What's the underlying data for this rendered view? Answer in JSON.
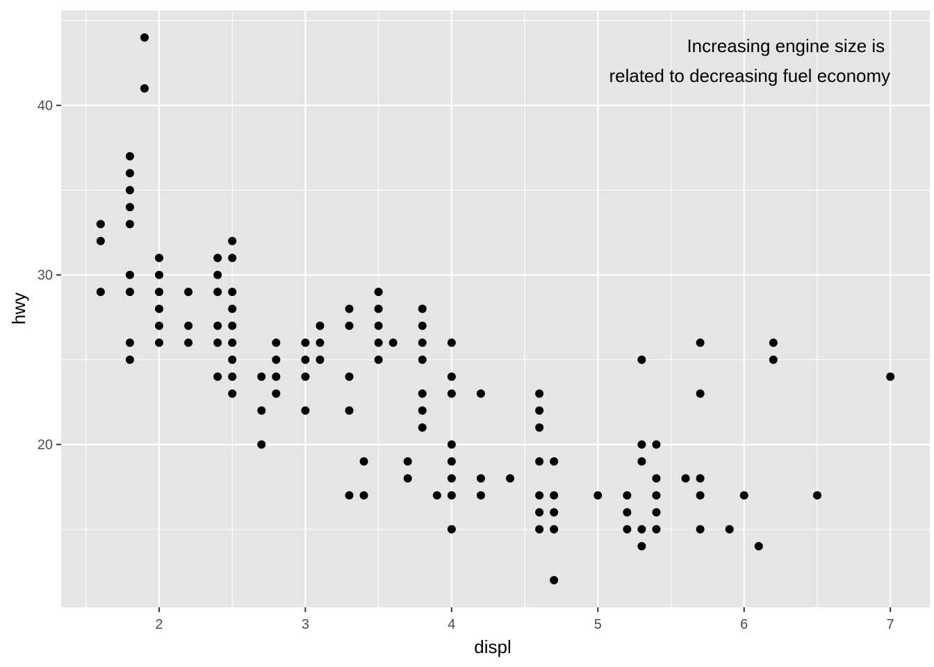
{
  "chart_data": {
    "type": "scatter",
    "xlabel": "displ",
    "ylabel": "hwy",
    "xlim": [
      1.33,
      7.27
    ],
    "ylim": [
      10.4,
      45.6
    ],
    "x_ticks": [
      2,
      3,
      4,
      5,
      6,
      7
    ],
    "y_ticks": [
      20,
      30,
      40
    ],
    "grid": true,
    "annotation": {
      "lines": [
        "Increasing engine size is",
        "related to decreasing fuel economy"
      ],
      "anchor_x": 7.0,
      "anchor_y": 44,
      "align": "right"
    },
    "colors": {
      "panel_background": "#e5e5e5",
      "grid_line": "#ffffff",
      "point": "#000000",
      "tick_text": "#4d4d4d"
    },
    "points": [
      [
        1.6,
        33
      ],
      [
        1.6,
        32
      ],
      [
        1.6,
        29
      ],
      [
        1.8,
        37
      ],
      [
        1.8,
        36
      ],
      [
        1.8,
        35
      ],
      [
        1.8,
        34
      ],
      [
        1.8,
        33
      ],
      [
        1.8,
        30
      ],
      [
        1.8,
        29
      ],
      [
        1.8,
        26
      ],
      [
        1.8,
        25
      ],
      [
        1.9,
        44
      ],
      [
        1.9,
        41
      ],
      [
        2.0,
        31
      ],
      [
        2.0,
        30
      ],
      [
        2.0,
        29
      ],
      [
        2.0,
        28
      ],
      [
        2.0,
        27
      ],
      [
        2.0,
        26
      ],
      [
        2.2,
        29
      ],
      [
        2.2,
        27
      ],
      [
        2.2,
        26
      ],
      [
        2.4,
        31
      ],
      [
        2.4,
        30
      ],
      [
        2.4,
        29
      ],
      [
        2.4,
        27
      ],
      [
        2.4,
        26
      ],
      [
        2.4,
        24
      ],
      [
        2.5,
        32
      ],
      [
        2.5,
        31
      ],
      [
        2.5,
        29
      ],
      [
        2.5,
        28
      ],
      [
        2.5,
        27
      ],
      [
        2.5,
        26
      ],
      [
        2.5,
        25
      ],
      [
        2.5,
        24
      ],
      [
        2.5,
        23
      ],
      [
        2.7,
        24
      ],
      [
        2.7,
        22
      ],
      [
        2.7,
        20
      ],
      [
        2.8,
        26
      ],
      [
        2.8,
        25
      ],
      [
        2.8,
        24
      ],
      [
        2.8,
        23
      ],
      [
        3.0,
        26
      ],
      [
        3.0,
        25
      ],
      [
        3.0,
        24
      ],
      [
        3.0,
        22
      ],
      [
        3.1,
        27
      ],
      [
        3.1,
        26
      ],
      [
        3.1,
        25
      ],
      [
        3.3,
        28
      ],
      [
        3.3,
        27
      ],
      [
        3.3,
        24
      ],
      [
        3.3,
        22
      ],
      [
        3.3,
        17
      ],
      [
        3.4,
        19
      ],
      [
        3.4,
        17
      ],
      [
        3.5,
        29
      ],
      [
        3.5,
        28
      ],
      [
        3.5,
        27
      ],
      [
        3.5,
        26
      ],
      [
        3.5,
        25
      ],
      [
        3.6,
        26
      ],
      [
        3.7,
        19
      ],
      [
        3.7,
        18
      ],
      [
        3.8,
        28
      ],
      [
        3.8,
        27
      ],
      [
        3.8,
        26
      ],
      [
        3.8,
        25
      ],
      [
        3.8,
        23
      ],
      [
        3.8,
        22
      ],
      [
        3.8,
        21
      ],
      [
        3.9,
        17
      ],
      [
        4.0,
        26
      ],
      [
        4.0,
        24
      ],
      [
        4.0,
        23
      ],
      [
        4.0,
        20
      ],
      [
        4.0,
        19
      ],
      [
        4.0,
        18
      ],
      [
        4.0,
        17
      ],
      [
        4.0,
        15
      ],
      [
        4.2,
        23
      ],
      [
        4.2,
        18
      ],
      [
        4.2,
        17
      ],
      [
        4.4,
        18
      ],
      [
        4.6,
        23
      ],
      [
        4.6,
        22
      ],
      [
        4.6,
        21
      ],
      [
        4.6,
        19
      ],
      [
        4.6,
        17
      ],
      [
        4.6,
        16
      ],
      [
        4.6,
        15
      ],
      [
        4.7,
        19
      ],
      [
        4.7,
        17
      ],
      [
        4.7,
        16
      ],
      [
        4.7,
        15
      ],
      [
        4.7,
        12
      ],
      [
        5.0,
        17
      ],
      [
        5.2,
        17
      ],
      [
        5.2,
        16
      ],
      [
        5.2,
        15
      ],
      [
        5.3,
        25
      ],
      [
        5.3,
        20
      ],
      [
        5.3,
        19
      ],
      [
        5.3,
        15
      ],
      [
        5.3,
        14
      ],
      [
        5.4,
        20
      ],
      [
        5.4,
        18
      ],
      [
        5.4,
        17
      ],
      [
        5.4,
        16
      ],
      [
        5.4,
        15
      ],
      [
        5.6,
        18
      ],
      [
        5.7,
        26
      ],
      [
        5.7,
        23
      ],
      [
        5.7,
        18
      ],
      [
        5.7,
        17
      ],
      [
        5.7,
        15
      ],
      [
        5.9,
        15
      ],
      [
        6.0,
        17
      ],
      [
        6.1,
        14
      ],
      [
        6.2,
        26
      ],
      [
        6.2,
        25
      ],
      [
        6.5,
        17
      ],
      [
        7.0,
        24
      ]
    ]
  }
}
